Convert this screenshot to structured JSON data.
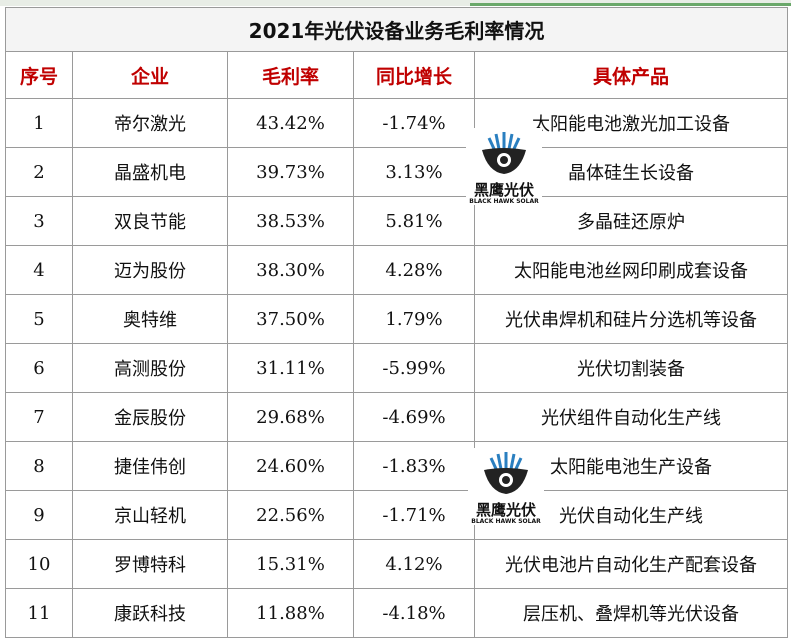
{
  "title": "2021年光伏设备业务毛利率情况",
  "headers": [
    "序号",
    "企业",
    "毛利率",
    "同比增长",
    "具体产品"
  ],
  "rows": [
    [
      "1",
      "帝尔激光",
      "43.42%",
      "-1.74%",
      "太阳能电池激光加工设备"
    ],
    [
      "2",
      "晶盛机电",
      "39.73%",
      "3.13%",
      "晶体硅生长设备"
    ],
    [
      "3",
      "双良节能",
      "38.53%",
      "5.81%",
      "多晶硅还原炉"
    ],
    [
      "4",
      "迈为股份",
      "38.30%",
      "4.28%",
      "太阳能电池丝网印刷成套设备"
    ],
    [
      "5",
      "奥特维",
      "37.50%",
      "1.79%",
      "光伏串焊机和硅片分选机等设备"
    ],
    [
      "6",
      "高测股份",
      "31.11%",
      "-5.99%",
      "光伏切割装备"
    ],
    [
      "7",
      "金辰股份",
      "29.68%",
      "-4.69%",
      "光伏组件自动化生产线"
    ],
    [
      "8",
      "捷佳伟创",
      "24.60%",
      "-1.83%",
      "太阳能电池生产设备"
    ],
    [
      "9",
      "京山轻机",
      "22.56%",
      "-1.71%",
      "光伏自动化生产线"
    ],
    [
      "10",
      "罗博特科",
      "15.31%",
      "4.12%",
      "光伏电池片自动化生产配套设备"
    ],
    [
      "11",
      "康跃科技",
      "11.88%",
      "-4.18%",
      "层压机、叠焊机等光伏设备"
    ]
  ],
  "watermark": {
    "name": "黑鹰光伏",
    "sub": "BLACK HAWK SOLAR",
    "icon": "hawk-logo-icon"
  },
  "colors": {
    "header_text": "#c00000",
    "border": "#9a9a9a"
  }
}
